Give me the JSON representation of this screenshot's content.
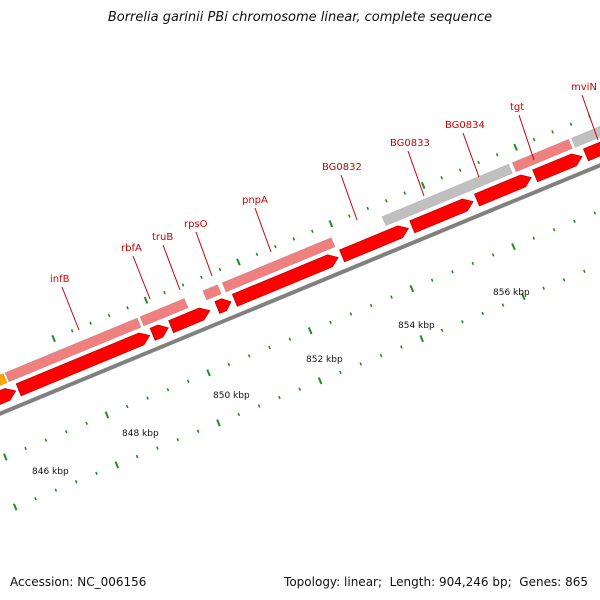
{
  "title": "Borrelia garinii PBi chromosome linear, complete sequence",
  "footer": {
    "accession_label": "Accession:",
    "accession": "NC_006156",
    "topology_label": "Topology:",
    "topology": "linear",
    "length_label": "Length:",
    "length": "904,246 bp",
    "genes_label": "Genes:",
    "genes": "865"
  },
  "colors": {
    "cds": "#ff0000",
    "gene": "#f08080",
    "pseudo_gene": "#c0c0c0",
    "rna": "#ffa500",
    "backbone": "#808080",
    "tick": "#228b22",
    "label": "#cc0000"
  },
  "scale_labels": [
    {
      "text": "846 kbp",
      "kbp": 846
    },
    {
      "text": "848 kbp",
      "kbp": 848
    },
    {
      "text": "850 kbp",
      "kbp": 850
    },
    {
      "text": "852 kbp",
      "kbp": 852
    },
    {
      "text": "854 kbp",
      "kbp": 854
    },
    {
      "text": "856 kbp",
      "kbp": 856
    }
  ],
  "gene_labels": [
    {
      "text": "infB"
    },
    {
      "text": "rbfA"
    },
    {
      "text": "truB"
    },
    {
      "text": "rpsO"
    },
    {
      "text": "pnpA"
    },
    {
      "text": "BG0832"
    },
    {
      "text": "BG0833"
    },
    {
      "text": "BG0834"
    },
    {
      "text": "tgt"
    },
    {
      "text": "mviN"
    }
  ]
}
